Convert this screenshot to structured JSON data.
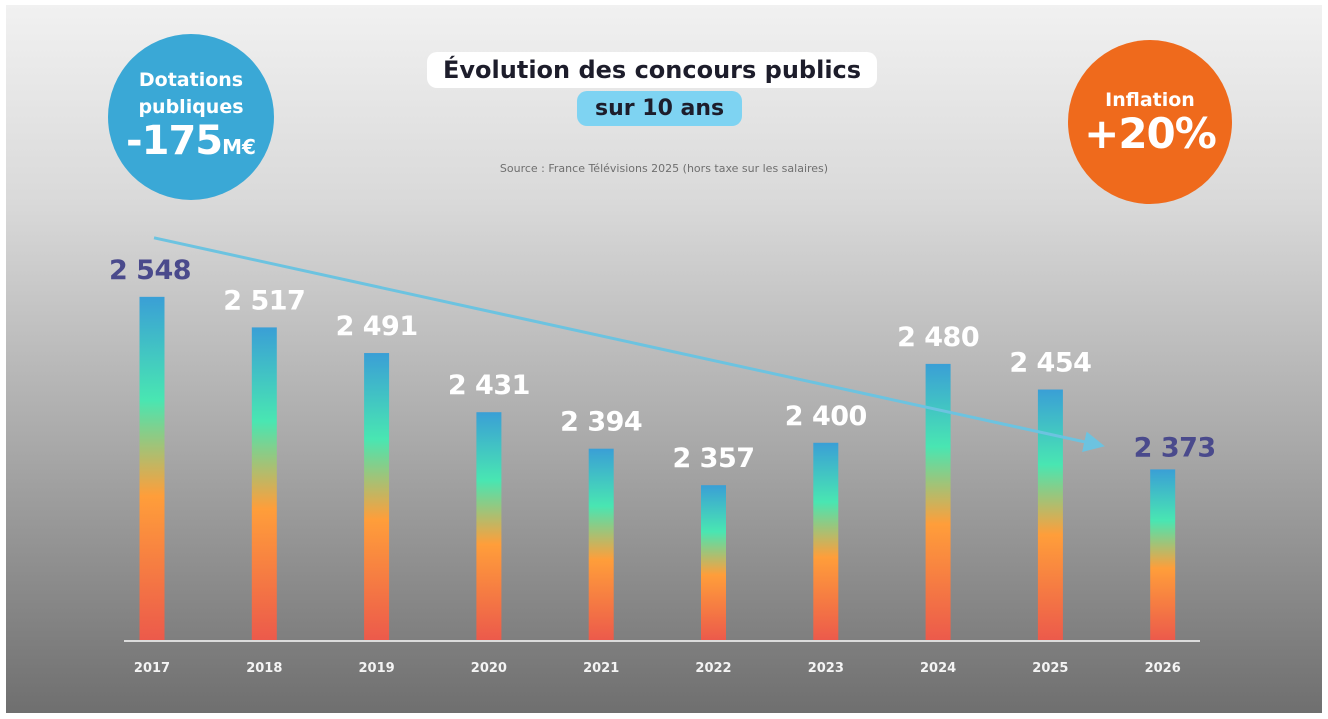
{
  "badges": {
    "left": {
      "line1": "Dotations",
      "line2": "publiques",
      "value": "-175",
      "unit": "M€",
      "color": "#3aa8d6"
    },
    "right": {
      "label": "Inflation",
      "value": "+20%",
      "color": "#ef6a1c"
    }
  },
  "title": {
    "main": "Évolution des concours publics",
    "sub": "sur 10 ans"
  },
  "source": "Source : France Télévisions 2025 (hors taxe sur les salaires)",
  "chart_data": {
    "type": "bar",
    "title": "Évolution des concours publics sur 10 ans",
    "categories": [
      "2017",
      "2018",
      "2019",
      "2020",
      "2021",
      "2022",
      "2023",
      "2024",
      "2025",
      "2026"
    ],
    "values": [
      2548,
      2517,
      2491,
      2431,
      2394,
      2357,
      2400,
      2480,
      2454,
      2373
    ],
    "value_labels": [
      "2 548",
      "2 517",
      "2 491",
      "2 431",
      "2 394",
      "2 357",
      "2 400",
      "2 480",
      "2 454",
      "2 373"
    ],
    "highlight": [
      "2017",
      "2026"
    ],
    "ylim": [
      2200,
      2560
    ],
    "xlabel": "",
    "ylabel": "",
    "grid": false,
    "trend": {
      "from": "2017",
      "to": "2026"
    },
    "colors": {
      "label": "#ffffff",
      "highlight_label": "#4a4a8c",
      "trend": "#6cc3e0",
      "axis": "#dcdcdc"
    }
  }
}
